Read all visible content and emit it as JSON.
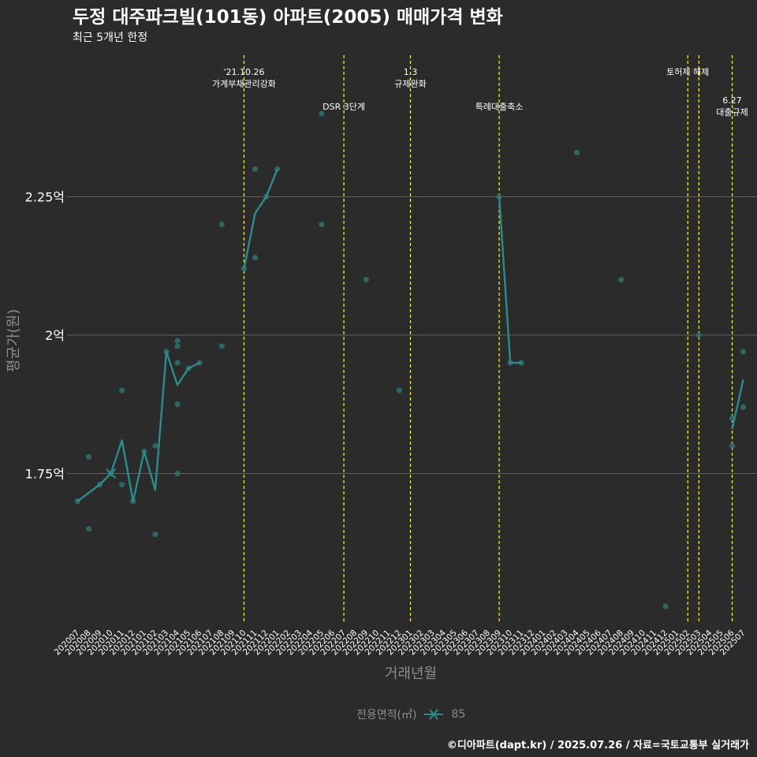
{
  "title": "두정 대주파크빌(101동) 아파트(2005) 매매가격 변화",
  "subtitle": "최근 5개년 한정",
  "caption": "©디아파트(dapt.kr) / 2025.07.26 / 자료=국토교통부 실거래가",
  "colors": {
    "background": "#2b2b2b",
    "series": "#2a8c8c",
    "points": "#2d6e6a",
    "event_line": "#ffff00",
    "grid": "#5e5e5e",
    "text": "#ffffff",
    "muted": "#8c8c8c"
  },
  "chart_data": {
    "type": "line",
    "title": "두정 대주파크빌(101동) 아파트(2005) 매매가격 변화",
    "subtitle": "최근 5개년 한정",
    "xlabel": "거래년월",
    "ylabel": "평균가(원)",
    "ylim": [
      1.48,
      2.52
    ],
    "y_ticks": [
      1.75,
      2.0,
      2.25
    ],
    "y_tick_labels": [
      "1.75억",
      "2억",
      "2.25억"
    ],
    "categories": [
      "202007",
      "202008",
      "202009",
      "202010",
      "202011",
      "202012",
      "202101",
      "202102",
      "202103",
      "202104",
      "202105",
      "202106",
      "202107",
      "202108",
      "202109",
      "202110",
      "202111",
      "202112",
      "202201",
      "202202",
      "202203",
      "202204",
      "202205",
      "202206",
      "202207",
      "202208",
      "202209",
      "202210",
      "202211",
      "202212",
      "202301",
      "202302",
      "202303",
      "202304",
      "202305",
      "202306",
      "202307",
      "202308",
      "202309",
      "202310",
      "202311",
      "202312",
      "202401",
      "202402",
      "202403",
      "202404",
      "202405",
      "202406",
      "202407",
      "202408",
      "202409",
      "202410",
      "202411",
      "202412",
      "202501",
      "202502",
      "202503",
      "202504",
      "202505",
      "202506",
      "202507"
    ],
    "legend_title": "전용면적(㎡)",
    "series": [
      {
        "name": "85",
        "segments": [
          [
            [
              "202007",
              1.7
            ],
            [
              "202009",
              1.73
            ],
            [
              "202010",
              1.75
            ],
            [
              "202011",
              1.81
            ],
            [
              "202012",
              1.7
            ],
            [
              "202101",
              1.79
            ],
            [
              "202102",
              1.72
            ],
            [
              "202103",
              1.97
            ],
            [
              "202104",
              1.91
            ],
            [
              "202105",
              1.94
            ],
            [
              "202106",
              1.95
            ]
          ],
          [
            [
              "202110",
              2.12
            ],
            [
              "202111",
              2.22
            ],
            [
              "202112",
              2.25
            ],
            [
              "202201",
              2.3
            ]
          ],
          [
            [
              "202309",
              2.25
            ],
            [
              "202310",
              1.95
            ],
            [
              "202311",
              1.95
            ]
          ],
          [
            [
              "202506",
              1.83
            ],
            [
              "202507",
              1.92
            ]
          ]
        ]
      }
    ],
    "scatter": [
      [
        "202007",
        1.7
      ],
      [
        "202008",
        1.78
      ],
      [
        "202008",
        1.65
      ],
      [
        "202009",
        1.73
      ],
      [
        "202010",
        1.75
      ],
      [
        "202011",
        1.9
      ],
      [
        "202011",
        1.73
      ],
      [
        "202012",
        1.7
      ],
      [
        "202101",
        1.79
      ],
      [
        "202102",
        1.8
      ],
      [
        "202102",
        1.64
      ],
      [
        "202103",
        1.97
      ],
      [
        "202104",
        1.99
      ],
      [
        "202104",
        1.98
      ],
      [
        "202104",
        1.95
      ],
      [
        "202104",
        1.875
      ],
      [
        "202104",
        1.75
      ],
      [
        "202105",
        1.94
      ],
      [
        "202106",
        1.95
      ],
      [
        "202108",
        1.98
      ],
      [
        "202108",
        2.2
      ],
      [
        "202110",
        2.12
      ],
      [
        "202111",
        2.3
      ],
      [
        "202111",
        2.14
      ],
      [
        "202112",
        2.25
      ],
      [
        "202201",
        2.3
      ],
      [
        "202205",
        2.2
      ],
      [
        "202205",
        2.4
      ],
      [
        "202209",
        2.1
      ],
      [
        "202212",
        1.9
      ],
      [
        "202309",
        2.25
      ],
      [
        "202310",
        1.95
      ],
      [
        "202311",
        1.95
      ],
      [
        "202404",
        2.33
      ],
      [
        "202408",
        2.1
      ],
      [
        "202412",
        1.51
      ],
      [
        "202503",
        2.0
      ],
      [
        "202506",
        1.85
      ],
      [
        "202506",
        1.8
      ],
      [
        "202507",
        1.97
      ],
      [
        "202507",
        1.87
      ]
    ],
    "events": [
      {
        "date": "202110",
        "lines": [
          "'21.10.26",
          "가계부채관리강화"
        ],
        "level": 1
      },
      {
        "date": "202207",
        "lines": [
          "DSR 3단계"
        ],
        "level": 2
      },
      {
        "date": "202301",
        "lines": [
          "1.3",
          "규제완화"
        ],
        "level": 1
      },
      {
        "date": "202309",
        "lines": [
          "특례대출축소"
        ],
        "level": 2
      },
      {
        "date": "202502",
        "lines": [
          "토허제 해제"
        ],
        "level": 1
      },
      {
        "date": "202503",
        "lines": [],
        "level": 1
      },
      {
        "date": "202506",
        "lines": [
          "6.27",
          "대출규제"
        ],
        "level": 3
      }
    ]
  }
}
